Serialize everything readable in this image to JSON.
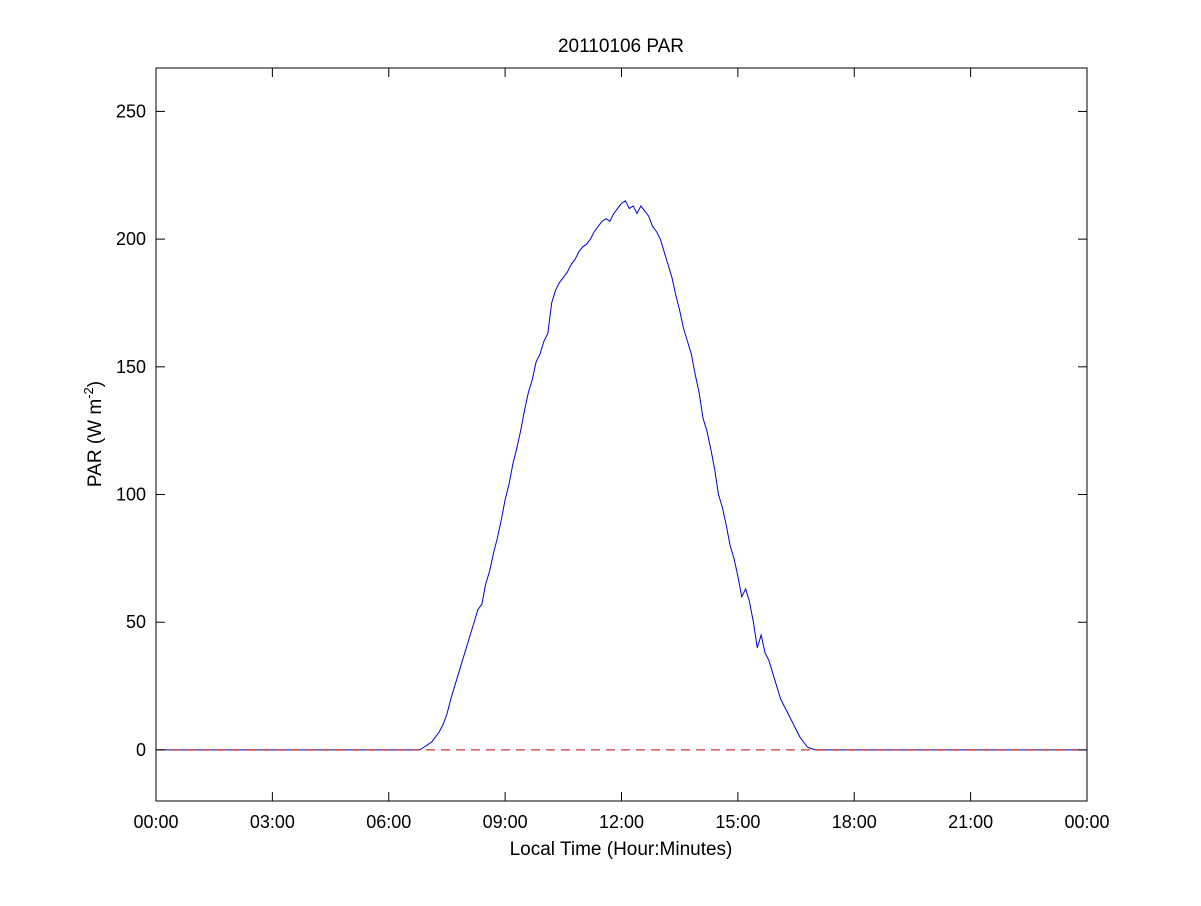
{
  "chart_data": {
    "type": "line",
    "title": "20110106 PAR",
    "xlabel": "Local Time (Hour:Minutes)",
    "ylabel": {
      "main": "PAR (W m",
      "superscript": "-2",
      "close": ")"
    },
    "x_unit": "hours",
    "xlim": [
      0,
      24
    ],
    "ylim": [
      -20,
      267
    ],
    "x_ticks": [
      0,
      3,
      6,
      9,
      12,
      15,
      18,
      21,
      24
    ],
    "x_tick_labels": [
      "00:00",
      "03:00",
      "06:00",
      "09:00",
      "12:00",
      "15:00",
      "18:00",
      "21:00",
      "00:00"
    ],
    "y_ticks": [
      0,
      50,
      100,
      150,
      200,
      250
    ],
    "y_tick_labels": [
      "0",
      "50",
      "100",
      "150",
      "200",
      "250"
    ],
    "grid": false,
    "legend": "none",
    "series": [
      {
        "color": "#0000cc",
        "style": "solid",
        "x": [
          0,
          6.8,
          6.9,
          7.0,
          7.1,
          7.2,
          7.3,
          7.4,
          7.5,
          7.6,
          7.7,
          7.8,
          7.9,
          8.0,
          8.1,
          8.2,
          8.3,
          8.4,
          8.5,
          8.6,
          8.7,
          8.8,
          8.9,
          9.0,
          9.1,
          9.2,
          9.3,
          9.4,
          9.5,
          9.6,
          9.7,
          9.8,
          9.9,
          10.0,
          10.1,
          10.2,
          10.3,
          10.4,
          10.5,
          10.6,
          10.7,
          10.8,
          10.9,
          11.0,
          11.1,
          11.2,
          11.3,
          11.4,
          11.5,
          11.6,
          11.7,
          11.8,
          11.9,
          12.0,
          12.1,
          12.2,
          12.3,
          12.4,
          12.5,
          12.6,
          12.7,
          12.8,
          12.9,
          13.0,
          13.1,
          13.2,
          13.3,
          13.4,
          13.5,
          13.6,
          13.7,
          13.8,
          13.9,
          14.0,
          14.1,
          14.2,
          14.3,
          14.4,
          14.5,
          14.6,
          14.7,
          14.8,
          14.9,
          15.0,
          15.1,
          15.2,
          15.3,
          15.4,
          15.5,
          15.6,
          15.7,
          15.8,
          15.9,
          16.0,
          16.1,
          16.2,
          16.3,
          16.4,
          16.5,
          16.6,
          16.7,
          16.8,
          16.9,
          17.0,
          17.1,
          17.2,
          17.3,
          17.4,
          17.5,
          24
        ],
        "y": [
          0,
          0,
          1,
          2,
          3,
          5,
          7,
          10,
          14,
          20,
          25,
          30,
          35,
          40,
          45,
          50,
          55,
          57,
          65,
          70,
          77,
          83,
          90,
          98,
          104,
          112,
          118,
          125,
          133,
          140,
          145,
          152,
          155,
          160,
          163,
          175,
          180,
          183,
          185,
          187,
          190,
          192,
          195,
          197,
          198,
          200,
          203,
          205,
          207,
          208,
          207,
          210,
          212,
          214,
          215,
          212,
          213,
          210,
          213,
          211,
          209,
          205,
          203,
          200,
          195,
          190,
          185,
          178,
          172,
          165,
          160,
          155,
          147,
          140,
          130,
          125,
          118,
          110,
          100,
          95,
          88,
          80,
          75,
          68,
          60,
          63,
          58,
          50,
          40,
          45,
          38,
          35,
          30,
          25,
          20,
          17,
          14,
          11,
          8,
          5,
          3,
          1,
          0.5,
          0,
          0,
          0,
          0,
          0,
          0,
          0
        ]
      },
      {
        "color": "#cc0000",
        "style": "dashed",
        "x": [
          0,
          24
        ],
        "y": [
          0,
          0
        ]
      }
    ]
  }
}
